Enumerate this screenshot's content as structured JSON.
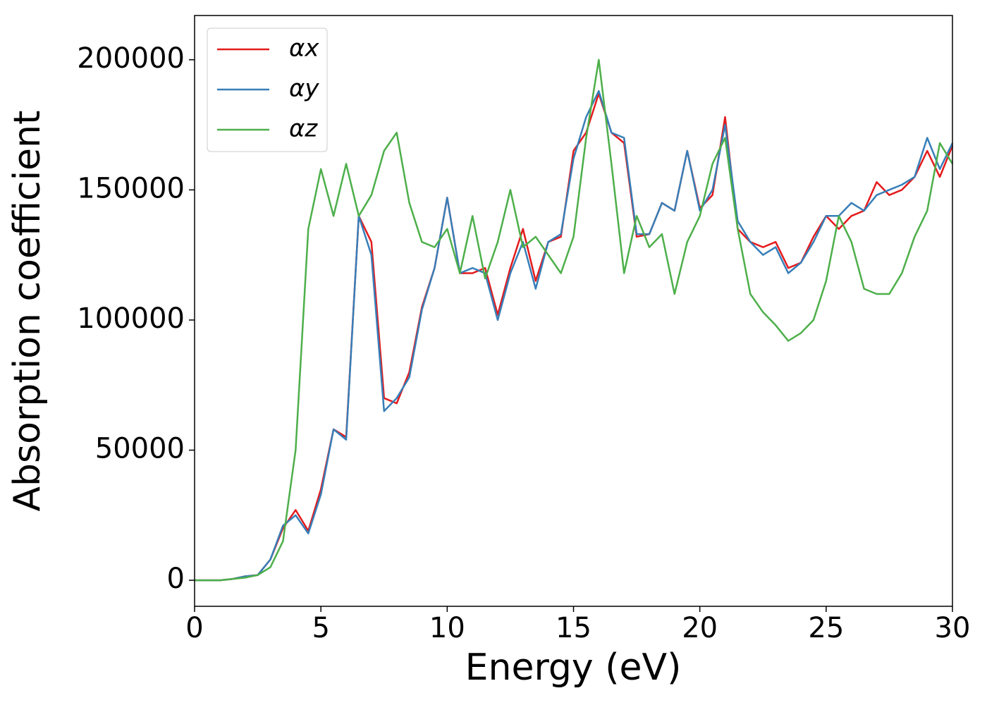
{
  "chart_data": {
    "type": "line",
    "x_label": "Energy (eV)",
    "y_label": "Absorption coefficient",
    "x": [
      0,
      0.5,
      1,
      1.5,
      2,
      2.5,
      3,
      3.5,
      4,
      4.5,
      5,
      5.5,
      6,
      6.5,
      7,
      7.5,
      8,
      8.5,
      9,
      9.5,
      10,
      10.5,
      11,
      11.5,
      12,
      12.5,
      13,
      13.5,
      14,
      14.5,
      15,
      15.5,
      16,
      16.5,
      17,
      17.5,
      18,
      18.5,
      19,
      19.5,
      20,
      20.5,
      21,
      21.5,
      22,
      22.5,
      23,
      23.5,
      24,
      24.5,
      25,
      25.5,
      26,
      26.5,
      27,
      27.5,
      28,
      28.5,
      29,
      29.5,
      30
    ],
    "series": [
      {
        "name": "αx",
        "color": "#e41a1c",
        "values": [
          0,
          0,
          0,
          500,
          1500,
          2000,
          8000,
          20000,
          27000,
          19000,
          35000,
          58000,
          55000,
          140000,
          130000,
          70000,
          68000,
          80000,
          105000,
          120000,
          147000,
          118000,
          118000,
          120000,
          102000,
          120000,
          135000,
          115000,
          130000,
          132000,
          165000,
          172000,
          187000,
          172000,
          168000,
          132000,
          133000,
          145000,
          142000,
          165000,
          143000,
          148000,
          178000,
          135000,
          130000,
          128000,
          130000,
          120000,
          122000,
          132000,
          140000,
          135000,
          140000,
          142000,
          153000,
          148000,
          150000,
          155000,
          165000,
          155000,
          167000
        ]
      },
      {
        "name": "αy",
        "color": "#377eb8",
        "values": [
          0,
          0,
          0,
          500,
          1500,
          2000,
          8000,
          21000,
          25000,
          18000,
          33000,
          58000,
          54000,
          140000,
          125000,
          65000,
          70000,
          78000,
          104000,
          120000,
          147000,
          118000,
          120000,
          118000,
          100000,
          118000,
          130000,
          112000,
          130000,
          133000,
          162000,
          178000,
          188000,
          172000,
          170000,
          133000,
          133000,
          145000,
          142000,
          165000,
          142000,
          150000,
          175000,
          138000,
          130000,
          125000,
          128000,
          118000,
          122000,
          130000,
          140000,
          140000,
          145000,
          142000,
          148000,
          150000,
          152000,
          155000,
          170000,
          158000,
          168000
        ]
      },
      {
        "name": "αz",
        "color": "#4daf4a",
        "values": [
          0,
          0,
          0,
          500,
          1000,
          2000,
          5000,
          15000,
          50000,
          135000,
          158000,
          140000,
          160000,
          140000,
          148000,
          165000,
          172000,
          145000,
          130000,
          128000,
          135000,
          118000,
          140000,
          116000,
          130000,
          150000,
          128000,
          132000,
          125000,
          118000,
          132000,
          170000,
          200000,
          160000,
          118000,
          140000,
          128000,
          133000,
          110000,
          130000,
          140000,
          160000,
          170000,
          135000,
          110000,
          103000,
          98000,
          92000,
          95000,
          100000,
          115000,
          140000,
          130000,
          112000,
          110000,
          110000,
          118000,
          132000,
          142000,
          168000,
          160000
        ]
      }
    ],
    "xlim": [
      0,
      30
    ],
    "xticks": [
      0,
      5,
      10,
      15,
      20,
      25,
      30
    ],
    "ylim": [
      -10000,
      217000
    ],
    "yticks": [
      0,
      50000,
      100000,
      150000,
      200000
    ],
    "legend": "upper left",
    "grid": false
  }
}
